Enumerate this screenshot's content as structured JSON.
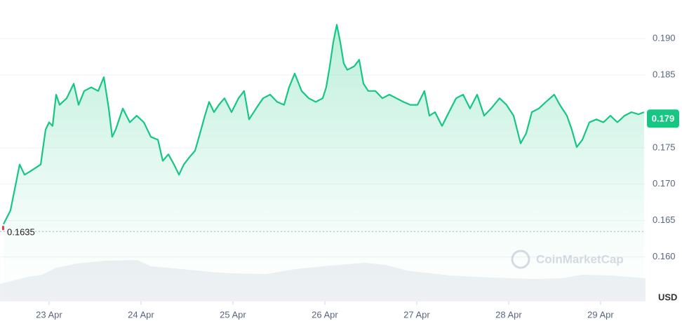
{
  "chart_data": {
    "type": "line",
    "x": [
      22.504,
      22.58,
      22.634,
      22.68,
      22.733,
      22.787,
      22.848,
      22.909,
      22.962,
      23.0,
      23.038,
      23.077,
      23.115,
      23.191,
      23.268,
      23.321,
      23.382,
      23.458,
      23.535,
      23.596,
      23.649,
      23.687,
      23.725,
      23.802,
      23.878,
      23.954,
      24.031,
      24.107,
      24.184,
      24.237,
      24.298,
      24.359,
      24.413,
      24.466,
      24.527,
      24.588,
      24.642,
      24.695,
      24.741,
      24.794,
      24.847,
      24.908,
      24.985,
      25.061,
      25.122,
      25.176,
      25.252,
      25.328,
      25.405,
      25.481,
      25.557,
      25.611,
      25.672,
      25.748,
      25.825,
      25.901,
      25.977,
      26.015,
      26.054,
      26.092,
      26.13,
      26.168,
      26.206,
      26.245,
      26.321,
      26.374,
      26.42,
      26.473,
      26.55,
      26.626,
      26.702,
      26.779,
      26.855,
      26.931,
      27.008,
      27.084,
      27.138,
      27.199,
      27.275,
      27.351,
      27.428,
      27.504,
      27.58,
      27.657,
      27.733,
      27.809,
      27.901,
      27.977,
      28.054,
      28.13,
      28.191,
      28.252,
      28.328,
      28.405,
      28.496,
      28.557,
      28.634,
      28.687,
      28.741,
      28.802,
      28.878,
      28.954,
      29.031,
      29.107,
      29.183,
      29.26,
      29.336,
      29.412,
      29.473
    ],
    "values": [
      0.1645,
      0.1664,
      0.1698,
      0.1727,
      0.1713,
      0.1717,
      0.1722,
      0.1727,
      0.1775,
      0.1785,
      0.178,
      0.1823,
      0.1809,
      0.1818,
      0.1838,
      0.1809,
      0.1828,
      0.1833,
      0.1828,
      0.1847,
      0.1804,
      0.1765,
      0.1775,
      0.1804,
      0.1785,
      0.1794,
      0.1785,
      0.1765,
      0.1761,
      0.1732,
      0.1741,
      0.1727,
      0.1713,
      0.1727,
      0.1737,
      0.1746,
      0.177,
      0.1794,
      0.1813,
      0.1799,
      0.1809,
      0.1818,
      0.1799,
      0.1818,
      0.1828,
      0.1789,
      0.1804,
      0.1818,
      0.1823,
      0.1813,
      0.1809,
      0.1833,
      0.1852,
      0.1828,
      0.1818,
      0.1813,
      0.1818,
      0.1833,
      0.1862,
      0.1895,
      0.1919,
      0.1895,
      0.1866,
      0.1857,
      0.1862,
      0.1871,
      0.1838,
      0.1828,
      0.1828,
      0.1818,
      0.1823,
      0.1818,
      0.1813,
      0.1809,
      0.1809,
      0.1828,
      0.1794,
      0.1799,
      0.178,
      0.1799,
      0.1818,
      0.1823,
      0.1804,
      0.1823,
      0.1794,
      0.1804,
      0.1818,
      0.1809,
      0.1794,
      0.1756,
      0.177,
      0.1799,
      0.1804,
      0.1813,
      0.1823,
      0.1809,
      0.1794,
      0.1775,
      0.1751,
      0.1761,
      0.1785,
      0.1789,
      0.1785,
      0.1794,
      0.1785,
      0.1794,
      0.1799,
      0.1796,
      0.1799
    ],
    "color": "#16c784",
    "xlim": [
      22.466,
      29.489
    ],
    "xticks": [
      {
        "value": 23,
        "label": "23 Apr"
      },
      {
        "value": 24,
        "label": "24 Apr"
      },
      {
        "value": 25,
        "label": "25 Apr"
      },
      {
        "value": 26,
        "label": "26 Apr"
      },
      {
        "value": 27,
        "label": "27 Apr"
      },
      {
        "value": 28,
        "label": "28 Apr"
      },
      {
        "value": 29,
        "label": "29 Apr"
      }
    ],
    "ylim": [
      0.1539,
      0.1953
    ],
    "yticks": [
      {
        "value": 0.16,
        "label": "0.160"
      },
      0.165,
      {
        "value": 0.17,
        "label": "0.170"
      },
      0.175,
      0.185,
      {
        "value": 0.19,
        "label": "0.190"
      }
    ],
    "grid": true,
    "current_price": 0.179,
    "reference_price": 0.1635,
    "currency": "USD",
    "watermark": "CoinMarketCap"
  }
}
